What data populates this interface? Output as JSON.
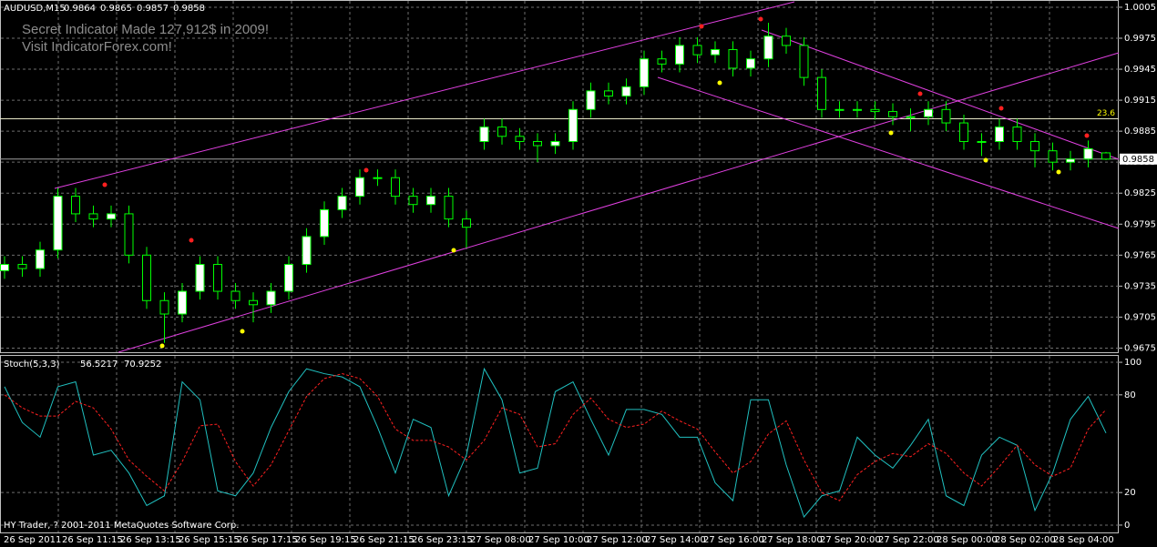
{
  "chart_data": [
    {
      "type": "candlestick",
      "title": "AUDUSD,M15",
      "annotations": [
        "Secret Indicator Made 127,912$ in 2009!",
        "Visit IndicatorForex.com!"
      ],
      "x_labels": [
        "26 Sep 2011",
        "26 Sep 11:15",
        "26 Sep 13:15",
        "26 Sep 15:15",
        "26 Sep 17:15",
        "26 Sep 19:15",
        "26 Sep 21:15",
        "26 Sep 23:15",
        "27 Sep 08:00",
        "27 Sep 10:00",
        "27 Sep 12:00",
        "27 Sep 14:00",
        "27 Sep 16:00",
        "27 Sep 18:00",
        "27 Sep 20:00",
        "27 Sep 22:00",
        "28 Sep 00:00",
        "28 Sep 02:00",
        "28 Sep 04:00"
      ],
      "open": [
        0.975,
        0.9756,
        0.9752,
        0.977,
        0.9822,
        0.9805,
        0.98,
        0.9805,
        0.9765,
        0.9721,
        0.9708,
        0.973,
        0.9756,
        0.973,
        0.9721,
        0.9717,
        0.973,
        0.9756,
        0.9783,
        0.9809,
        0.9822,
        0.984,
        0.984,
        0.9822,
        0.9814,
        0.9822,
        0.98,
        0.9875,
        0.9889,
        0.988,
        0.9875,
        0.9871,
        0.9875,
        0.9906,
        0.9924,
        0.9919,
        0.9928,
        0.9955,
        0.995,
        0.9968,
        0.9959,
        0.9964,
        0.9946,
        0.9955,
        0.9977,
        0.9968,
        0.9937,
        0.9906,
        0.9906,
        0.9906,
        0.9904,
        0.9899,
        0.9899,
        0.9906,
        0.9893,
        0.9875,
        0.9875,
        0.9889,
        0.9875,
        0.9866,
        0.9855,
        0.9858,
        0.9864
      ],
      "high": [
        0.9764,
        0.9764,
        0.9778,
        0.983,
        0.983,
        0.9813,
        0.9813,
        0.9813,
        0.9773,
        0.9729,
        0.9738,
        0.9764,
        0.9764,
        0.9738,
        0.9729,
        0.9738,
        0.9764,
        0.9791,
        0.9817,
        0.983,
        0.9848,
        0.9848,
        0.9848,
        0.983,
        0.983,
        0.983,
        0.9808,
        0.9897,
        0.9897,
        0.9888,
        0.9883,
        0.9883,
        0.9914,
        0.9932,
        0.9932,
        0.9936,
        0.9963,
        0.9963,
        0.9976,
        0.9976,
        0.9972,
        0.9972,
        0.9963,
        0.999,
        0.9985,
        0.9976,
        0.9945,
        0.9914,
        0.9914,
        0.9914,
        0.9912,
        0.9907,
        0.9914,
        0.9914,
        0.9901,
        0.9883,
        0.9897,
        0.9897,
        0.9883,
        0.9874,
        0.9866,
        0.9876,
        0.9865
      ],
      "low": [
        0.9742,
        0.9744,
        0.9744,
        0.9762,
        0.9797,
        0.9792,
        0.9792,
        0.9757,
        0.9713,
        0.968,
        0.97,
        0.9722,
        0.9722,
        0.9713,
        0.97,
        0.9709,
        0.9722,
        0.9748,
        0.9775,
        0.9801,
        0.9814,
        0.9832,
        0.9814,
        0.9806,
        0.9806,
        0.9792,
        0.9772,
        0.9867,
        0.9872,
        0.9867,
        0.9855,
        0.9863,
        0.9867,
        0.9898,
        0.9911,
        0.9911,
        0.992,
        0.9942,
        0.9942,
        0.9951,
        0.9951,
        0.9938,
        0.9938,
        0.9947,
        0.996,
        0.9929,
        0.9898,
        0.9898,
        0.9898,
        0.9896,
        0.9891,
        0.9885,
        0.9891,
        0.9885,
        0.9867,
        0.9861,
        0.9867,
        0.9867,
        0.985,
        0.9847,
        0.9847,
        0.985,
        0.9857
      ],
      "close": [
        0.9756,
        0.9752,
        0.977,
        0.9822,
        0.9805,
        0.98,
        0.9805,
        0.9765,
        0.9721,
        0.9708,
        0.973,
        0.9756,
        0.973,
        0.9721,
        0.9717,
        0.973,
        0.9756,
        0.9783,
        0.9809,
        0.9822,
        0.984,
        0.984,
        0.9822,
        0.9814,
        0.9822,
        0.98,
        0.9792,
        0.9889,
        0.988,
        0.9875,
        0.9871,
        0.9875,
        0.9906,
        0.9924,
        0.9919,
        0.9928,
        0.9955,
        0.995,
        0.9968,
        0.9959,
        0.9964,
        0.9946,
        0.9955,
        0.9977,
        0.9968,
        0.9937,
        0.9906,
        0.9906,
        0.9906,
        0.9904,
        0.9899,
        0.9899,
        0.9906,
        0.9893,
        0.9875,
        0.9875,
        0.9889,
        0.9875,
        0.9866,
        0.9855,
        0.9858,
        0.9868,
        0.9858
      ],
      "up_color": "#00ff00",
      "body_up": "#ffffff",
      "body_down": "#000000",
      "fib_levels": [
        {
          "value": 0.9897,
          "label": "23.6"
        }
      ],
      "ylim": [
        0.9671,
        1.0012
      ],
      "yticks": [
        1.0005,
        0.9975,
        0.9945,
        0.9915,
        0.9885,
        0.9855,
        0.9825,
        0.9795,
        0.9765,
        0.9735,
        0.9705,
        0.9675
      ],
      "grid": true
    },
    {
      "type": "line",
      "title": "Stoch(5,3,3)",
      "footer": "HY Trader, ? 2001-2011 MetaQuotes Software Corp.",
      "series": [
        {
          "color": "#20c0c0",
          "dash": false,
          "values": [
            85,
            63,
            54,
            85,
            88,
            43,
            46,
            32,
            12,
            18,
            88,
            77,
            21,
            18,
            32,
            60,
            82,
            96,
            93,
            91,
            85,
            60,
            32,
            65,
            60,
            18,
            43,
            96,
            77,
            32,
            35,
            82,
            88,
            65,
            43,
            71,
            71,
            68,
            54,
            54,
            26,
            15,
            77,
            77,
            37,
            5,
            18,
            21,
            54,
            43,
            35,
            49,
            65,
            18,
            12,
            43,
            54,
            49,
            9,
            32,
            65,
            79,
            56.5217
          ]
        },
        {
          "color": "#ff2020",
          "dash": true,
          "values": [
            80,
            72,
            67,
            67,
            76,
            72,
            59,
            40,
            30,
            21,
            39,
            61,
            62,
            39,
            24,
            37,
            58,
            79,
            90,
            93,
            90,
            79,
            59,
            52,
            52,
            48,
            40,
            52,
            72,
            68,
            48,
            50,
            68,
            78,
            65,
            60,
            62,
            70,
            64,
            59,
            45,
            32,
            39,
            56,
            64,
            40,
            20,
            15,
            31,
            39,
            44,
            42,
            50,
            44,
            32,
            24,
            36,
            49,
            37,
            30,
            35,
            59,
            70.9252
          ]
        }
      ],
      "ylim": [
        -4.5,
        104.5
      ],
      "yticks": [
        100,
        80,
        20,
        0
      ],
      "grid": true
    }
  ]
}
